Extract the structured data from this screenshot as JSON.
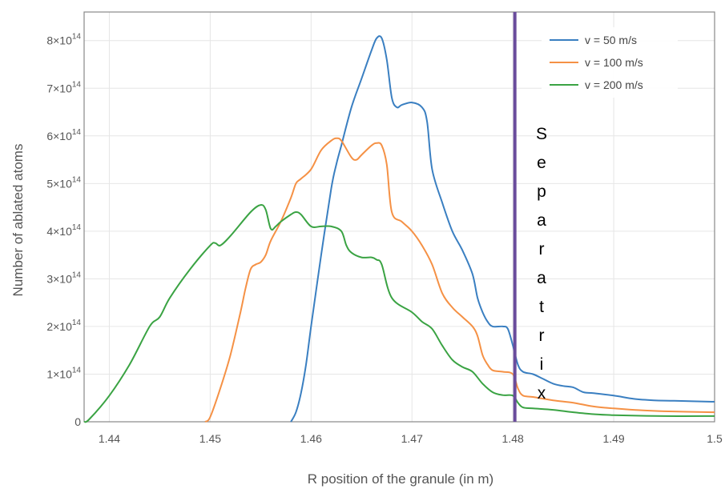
{
  "chart_data": {
    "type": "line",
    "title": "",
    "xlabel": "R position of the granule (in m)",
    "ylabel": "Number of ablated atoms",
    "xlim": [
      1.4375,
      1.5
    ],
    "ylim": [
      0,
      860000000000000.0
    ],
    "grid": true,
    "legend_position": "top-right",
    "x_ticks": [
      {
        "value": 1.44,
        "label": "1.44"
      },
      {
        "value": 1.45,
        "label": "1.45"
      },
      {
        "value": 1.46,
        "label": "1.46"
      },
      {
        "value": 1.47,
        "label": "1.47"
      },
      {
        "value": 1.48,
        "label": "1.48"
      },
      {
        "value": 1.49,
        "label": "1.49"
      },
      {
        "value": 1.5,
        "label": "1.5"
      }
    ],
    "y_ticks": [
      {
        "value": 0,
        "mantissa": "0",
        "exponent": ""
      },
      {
        "value": 100000000000000.0,
        "mantissa": "1×10",
        "exponent": "14"
      },
      {
        "value": 200000000000000.0,
        "mantissa": "2×10",
        "exponent": "14"
      },
      {
        "value": 300000000000000.0,
        "mantissa": "3×10",
        "exponent": "14"
      },
      {
        "value": 400000000000000.0,
        "mantissa": "4×10",
        "exponent": "14"
      },
      {
        "value": 500000000000000.0,
        "mantissa": "5×10",
        "exponent": "14"
      },
      {
        "value": 600000000000000.0,
        "mantissa": "6×10",
        "exponent": "14"
      },
      {
        "value": 700000000000000.0,
        "mantissa": "7×10",
        "exponent": "14"
      },
      {
        "value": 800000000000000.0,
        "mantissa": "8×10",
        "exponent": "14"
      }
    ],
    "series": [
      {
        "name": "v = 50 m/s",
        "color": "#3a7fc1",
        "x": [
          1.458,
          1.4585,
          1.459,
          1.4595,
          1.46,
          1.461,
          1.462,
          1.4625,
          1.463,
          1.464,
          1.465,
          1.466,
          1.4665,
          1.467,
          1.4675,
          1.468,
          1.4685,
          1.469,
          1.47,
          1.471,
          1.4715,
          1.472,
          1.473,
          1.474,
          1.475,
          1.476,
          1.4765,
          1.477,
          1.4775,
          1.478,
          1.479,
          1.4795,
          1.48,
          1.4805,
          1.481,
          1.482,
          1.483,
          1.484,
          1.485,
          1.486,
          1.487,
          1.488,
          1.49,
          1.492,
          1.494,
          1.496,
          1.5
        ],
        "y": [
          0,
          20000000000000.0,
          60000000000000.0,
          120000000000000.0,
          200000000000000.0,
          350000000000000.0,
          490000000000000.0,
          540000000000000.0,
          580000000000000.0,
          660000000000000.0,
          720000000000000.0,
          780000000000000.0,
          805000000000000.0,
          805000000000000.0,
          760000000000000.0,
          680000000000000.0,
          660000000000000.0,
          665000000000000.0,
          670000000000000.0,
          660000000000000.0,
          630000000000000.0,
          530000000000000.0,
          460000000000000.0,
          400000000000000.0,
          360000000000000.0,
          310000000000000.0,
          260000000000000.0,
          230000000000000.0,
          210000000000000.0,
          200000000000000.0,
          200000000000000.0,
          195000000000000.0,
          160000000000000.0,
          120000000000000.0,
          105000000000000.0,
          100000000000000.0,
          90000000000000.0,
          80000000000000.0,
          75000000000000.0,
          72000000000000.0,
          62000000000000.0,
          60000000000000.0,
          55000000000000.0,
          48000000000000.0,
          45000000000000.0,
          44000000000000.0,
          42000000000000.0
        ]
      },
      {
        "name": "v = 100 m/s",
        "color": "#f59145",
        "x": [
          1.4495,
          1.45,
          1.451,
          1.452,
          1.453,
          1.4535,
          1.454,
          1.4545,
          1.455,
          1.4555,
          1.456,
          1.457,
          1.458,
          1.4585,
          1.459,
          1.46,
          1.461,
          1.462,
          1.4625,
          1.463,
          1.464,
          1.4645,
          1.465,
          1.466,
          1.4665,
          1.467,
          1.4675,
          1.468,
          1.469,
          1.47,
          1.471,
          1.472,
          1.473,
          1.474,
          1.475,
          1.476,
          1.4765,
          1.477,
          1.4775,
          1.478,
          1.479,
          1.48,
          1.4805,
          1.481,
          1.482,
          1.484,
          1.486,
          1.488,
          1.49,
          1.492,
          1.495,
          1.5
        ],
        "y": [
          0,
          10000000000000.0,
          70000000000000.0,
          140000000000000.0,
          230000000000000.0,
          280000000000000.0,
          320000000000000.0,
          330000000000000.0,
          335000000000000.0,
          350000000000000.0,
          380000000000000.0,
          420000000000000.0,
          470000000000000.0,
          500000000000000.0,
          510000000000000.0,
          530000000000000.0,
          570000000000000.0,
          590000000000000.0,
          595000000000000.0,
          590000000000000.0,
          555000000000000.0,
          550000000000000.0,
          560000000000000.0,
          580000000000000.0,
          585000000000000.0,
          580000000000000.0,
          540000000000000.0,
          440000000000000.0,
          420000000000000.0,
          400000000000000.0,
          370000000000000.0,
          330000000000000.0,
          270000000000000.0,
          240000000000000.0,
          220000000000000.0,
          200000000000000.0,
          180000000000000.0,
          140000000000000.0,
          120000000000000.0,
          108000000000000.0,
          105000000000000.0,
          100000000000000.0,
          70000000000000.0,
          55000000000000.0,
          52000000000000.0,
          45000000000000.0,
          40000000000000.0,
          32000000000000.0,
          28000000000000.0,
          25000000000000.0,
          22000000000000.0,
          20000000000000.0
        ]
      },
      {
        "name": "v = 200 m/s",
        "color": "#3aa343",
        "x": [
          1.4375,
          1.438,
          1.44,
          1.442,
          1.444,
          1.445,
          1.446,
          1.448,
          1.45,
          1.4505,
          1.451,
          1.452,
          1.454,
          1.455,
          1.4555,
          1.456,
          1.4565,
          1.457,
          1.458,
          1.4585,
          1.459,
          1.46,
          1.461,
          1.462,
          1.463,
          1.4635,
          1.464,
          1.465,
          1.466,
          1.4665,
          1.467,
          1.468,
          1.47,
          1.471,
          1.472,
          1.473,
          1.474,
          1.475,
          1.476,
          1.477,
          1.478,
          1.479,
          1.48,
          1.4805,
          1.481,
          1.482,
          1.484,
          1.486,
          1.488,
          1.49,
          1.495,
          1.5
        ],
        "y": [
          0,
          5000000000000.0,
          55000000000000.0,
          120000000000000.0,
          200000000000000.0,
          220000000000000.0,
          260000000000000.0,
          320000000000000.0,
          370000000000000.0,
          375000000000000.0,
          370000000000000.0,
          390000000000000.0,
          440000000000000.0,
          455000000000000.0,
          445000000000000.0,
          405000000000000.0,
          410000000000000.0,
          420000000000000.0,
          435000000000000.0,
          440000000000000.0,
          435000000000000.0,
          410000000000000.0,
          410000000000000.0,
          410000000000000.0,
          400000000000000.0,
          370000000000000.0,
          355000000000000.0,
          345000000000000.0,
          345000000000000.0,
          340000000000000.0,
          330000000000000.0,
          260000000000000.0,
          230000000000000.0,
          210000000000000.0,
          195000000000000.0,
          160000000000000.0,
          130000000000000.0,
          115000000000000.0,
          105000000000000.0,
          80000000000000.0,
          62000000000000.0,
          56000000000000.0,
          55000000000000.0,
          40000000000000.0,
          30000000000000.0,
          28000000000000.0,
          25000000000000.0,
          20000000000000.0,
          16000000000000.0,
          14000000000000.0,
          12000000000000.0,
          12000000000000.0
        ]
      }
    ],
    "separatrix": {
      "x": 1.4802,
      "color": "#6a4c9c",
      "letters": [
        "S",
        "e",
        "p",
        "a",
        "r",
        "a",
        "t",
        "r",
        "i",
        "x"
      ]
    }
  }
}
